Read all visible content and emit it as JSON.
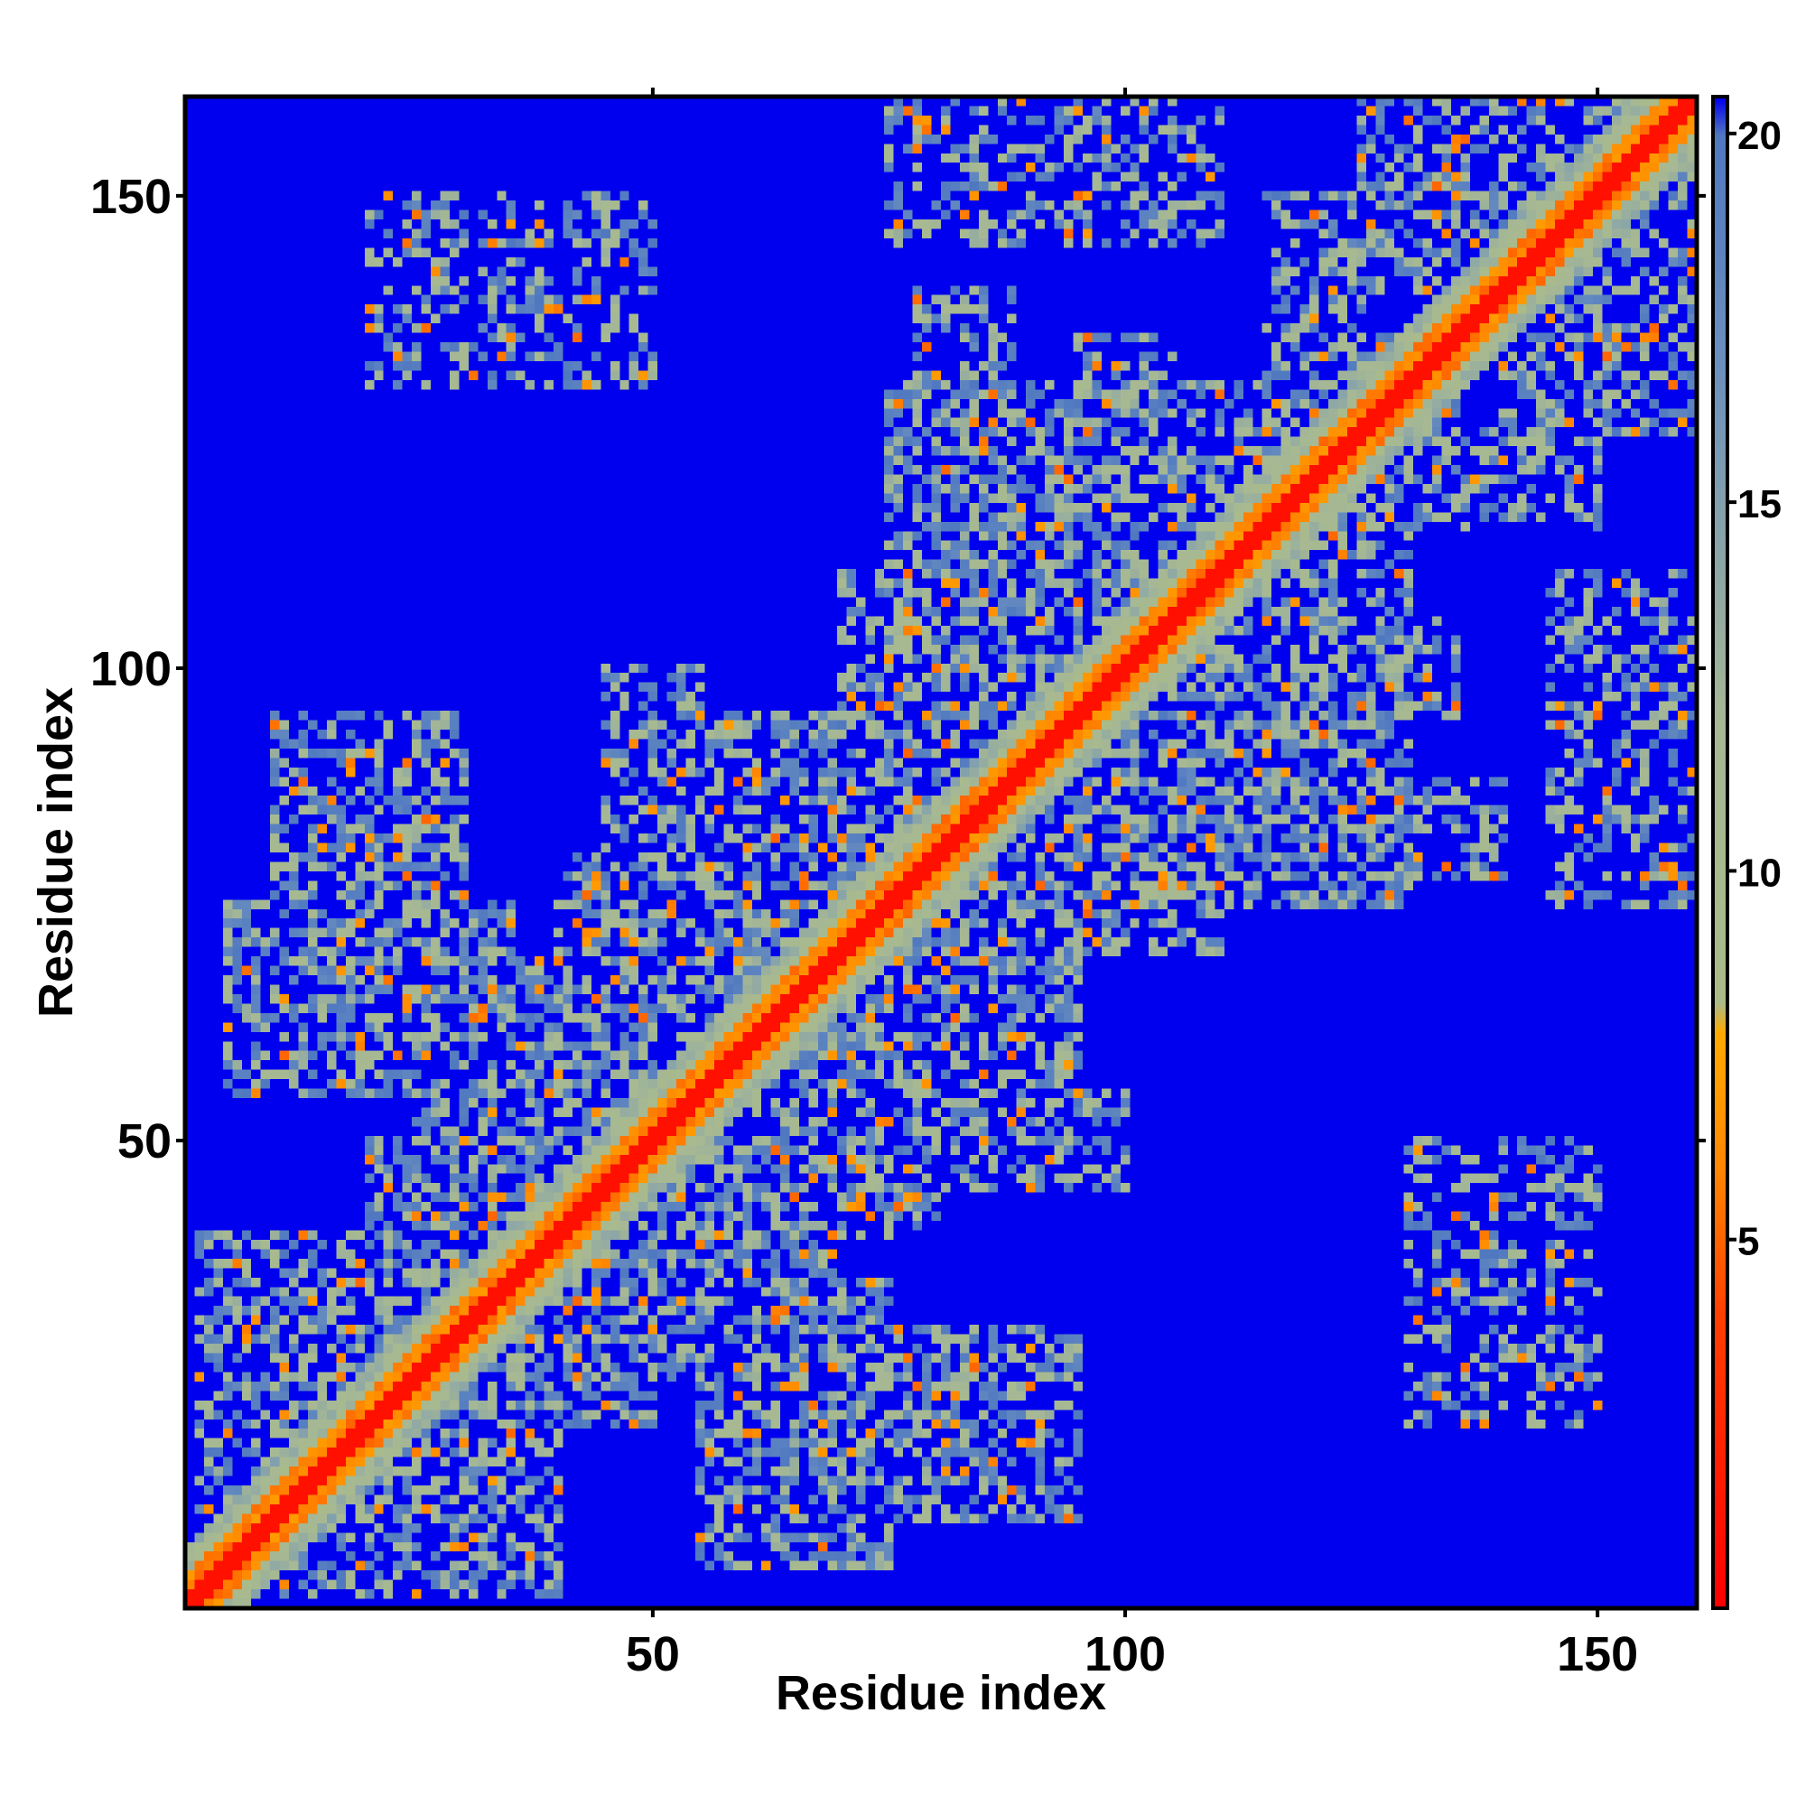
{
  "chart_data": {
    "type": "heatmap",
    "title": "",
    "xlabel": "Residue index",
    "ylabel": "Residue index",
    "xlim": [
      1,
      160
    ],
    "ylim": [
      1,
      160
    ],
    "x_ticks": [
      50,
      100,
      150
    ],
    "y_ticks": [
      50,
      100,
      150
    ],
    "x_tick_labels": [
      "50",
      "100",
      "150"
    ],
    "y_tick_labels": [
      "50",
      "100",
      "150"
    ],
    "n_residues": 160,
    "value_range": [
      0,
      20.5
    ],
    "saturation_value": 20.5,
    "colorbar": {
      "ticks": [
        5,
        10,
        15,
        20
      ],
      "tick_labels": [
        "5",
        "10",
        "15",
        "20"
      ],
      "range": [
        0,
        20.5
      ],
      "colors": [
        {
          "value": 0,
          "color": "#ff0000"
        },
        {
          "value": 4,
          "color": "#ff4000"
        },
        {
          "value": 6,
          "color": "#ff8800"
        },
        {
          "value": 7.8,
          "color": "#ffaa00"
        },
        {
          "value": 8.2,
          "color": "#aabb88"
        },
        {
          "value": 12,
          "color": "#a6b894"
        },
        {
          "value": 17,
          "color": "#6a8fbf"
        },
        {
          "value": 20,
          "color": "#5078c0"
        },
        {
          "value": 20.5,
          "color": "#0000ee"
        }
      ]
    },
    "contact_blocks": [
      {
        "i": [
          2,
          40
        ],
        "j": [
          2,
          40
        ],
        "strength": 0.5
      },
      {
        "i": [
          5,
          35
        ],
        "j": [
          55,
          75
        ],
        "strength": 0.55
      },
      {
        "i": [
          10,
          30
        ],
        "j": [
          60,
          95
        ],
        "strength": 0.5
      },
      {
        "i": [
          30,
          50
        ],
        "j": [
          30,
          60
        ],
        "strength": 0.6
      },
      {
        "i": [
          20,
          40
        ],
        "j": [
          30,
          50
        ],
        "strength": 0.55
      },
      {
        "i": [
          35,
          70
        ],
        "j": [
          25,
          45
        ],
        "strength": 0.6
      },
      {
        "i": [
          40,
          65
        ],
        "j": [
          50,
          80
        ],
        "strength": 0.55
      },
      {
        "i": [
          55,
          70
        ],
        "j": [
          10,
          35
        ],
        "strength": 0.55
      },
      {
        "i": [
          45,
          55
        ],
        "j": [
          80,
          100
        ],
        "strength": 0.45
      },
      {
        "i": [
          60,
          95
        ],
        "j": [
          50,
          95
        ],
        "strength": 0.55
      },
      {
        "i": [
          70,
          100
        ],
        "j": [
          75,
          110
        ],
        "strength": 0.5
      },
      {
        "i": [
          75,
          95
        ],
        "j": [
          90,
          130
        ],
        "strength": 0.6
      },
      {
        "i": [
          95,
          110
        ],
        "j": [
          70,
          90
        ],
        "strength": 0.6
      },
      {
        "i": [
          95,
          110
        ],
        "j": [
          105,
          125
        ],
        "strength": 0.55
      },
      {
        "i": [
          100,
          130
        ],
        "j": [
          100,
          130
        ],
        "strength": 0.5
      },
      {
        "i": [
          120,
          130
        ],
        "j": [
          115,
          135
        ],
        "strength": 0.6
      },
      {
        "i": [
          120,
          140
        ],
        "j": [
          78,
          88
        ],
        "strength": 0.5
      },
      {
        "i": [
          130,
          150
        ],
        "j": [
          20,
          50
        ],
        "strength": 0.4
      },
      {
        "i": [
          140,
          160
        ],
        "j": [
          125,
          160
        ],
        "strength": 0.55
      },
      {
        "i": [
          145,
          160
        ],
        "j": [
          75,
          110
        ],
        "strength": 0.4
      },
      {
        "i": [
          120,
          135
        ],
        "j": [
          95,
          105
        ],
        "strength": 0.5
      },
      {
        "i": [
          115,
          125
        ],
        "j": [
          130,
          150
        ],
        "strength": 0.45
      }
    ]
  }
}
